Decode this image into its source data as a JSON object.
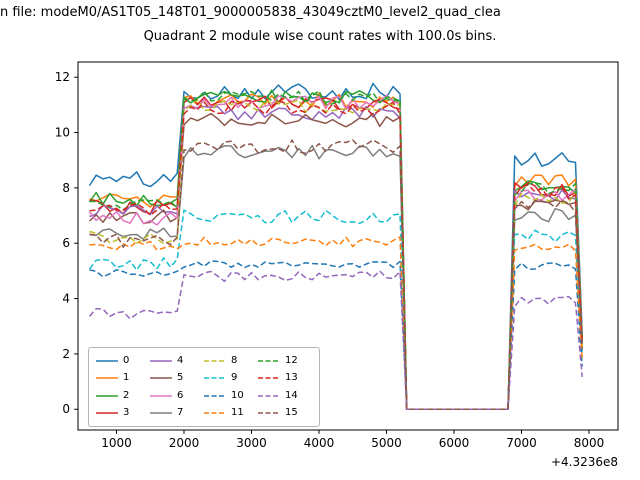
{
  "chart_data": {
    "type": "line",
    "suptitle": "n file: modeM0/AS1T05_148T01_9000005838_43049cztM0_level2_quad_clea",
    "title": "Quadrant 2 module wise count rates with 100.0s bins.",
    "xlabel": "",
    "ylabel": "",
    "x_offset_text": "+4.3236e8",
    "xlim": [
      430,
      8430
    ],
    "ylim": [
      -0.75,
      12.55
    ],
    "x_ticks": [
      1000,
      2000,
      3000,
      4000,
      5000,
      6000,
      7000,
      8000
    ],
    "y_ticks": [
      0,
      2,
      4,
      6,
      8,
      10,
      12
    ],
    "grid": false,
    "legend_position": "lower left",
    "legend_columns": 4,
    "x_start": 600,
    "x_end": 7900,
    "x_step": 100,
    "segments": [
      {
        "from": 600,
        "to": 1900,
        "level_key": "pre"
      },
      {
        "from": 2000,
        "to": 5200,
        "level_key": "high"
      },
      {
        "from": 5300,
        "to": 6800,
        "level_key": "zero"
      },
      {
        "from": 6900,
        "to": 7800,
        "level_key": "post"
      },
      {
        "from": 7900,
        "to": 7900,
        "level_key": "end"
      }
    ],
    "end_factor": 0.3,
    "series": [
      {
        "name": "0",
        "color": "#1f77b4",
        "dashed": false,
        "levels": {
          "pre": 8.3,
          "high": 11.5,
          "post": 9.0
        },
        "noise": 0.3,
        "seed": 101
      },
      {
        "name": "1",
        "color": "#ff7f0e",
        "dashed": false,
        "levels": {
          "pre": 7.5,
          "high": 11.15,
          "post": 8.2
        },
        "noise": 0.28,
        "seed": 102
      },
      {
        "name": "2",
        "color": "#2ca02c",
        "dashed": false,
        "levels": {
          "pre": 7.6,
          "high": 11.3,
          "post": 8.05
        },
        "noise": 0.26,
        "seed": 103
      },
      {
        "name": "3",
        "color": "#d62728",
        "dashed": false,
        "levels": {
          "pre": 7.3,
          "high": 11.05,
          "post": 7.95
        },
        "noise": 0.26,
        "seed": 104
      },
      {
        "name": "4",
        "color": "#9467bd",
        "dashed": false,
        "levels": {
          "pre": 7.15,
          "high": 10.7,
          "post": 7.75
        },
        "noise": 0.25,
        "seed": 105
      },
      {
        "name": "5",
        "color": "#8c564b",
        "dashed": false,
        "levels": {
          "pre": 6.95,
          "high": 10.45,
          "post": 7.45
        },
        "noise": 0.25,
        "seed": 106
      },
      {
        "name": "6",
        "color": "#e377c2",
        "dashed": false,
        "levels": {
          "pre": 6.9,
          "high": 11.1,
          "post": 7.7
        },
        "noise": 0.26,
        "seed": 107
      },
      {
        "name": "7",
        "color": "#7f7f7f",
        "dashed": false,
        "levels": {
          "pre": 6.35,
          "high": 9.3,
          "post": 7.0
        },
        "noise": 0.25,
        "seed": 108
      },
      {
        "name": "8",
        "color": "#bcbd22",
        "dashed": true,
        "levels": {
          "pre": 6.2,
          "high": 10.95,
          "post": 7.6
        },
        "noise": 0.26,
        "seed": 109
      },
      {
        "name": "9",
        "color": "#17becf",
        "dashed": true,
        "levels": {
          "pre": 5.25,
          "high": 6.95,
          "post": 6.3
        },
        "noise": 0.25,
        "seed": 110
      },
      {
        "name": "10",
        "color": "#1f77b4",
        "dashed": true,
        "levels": {
          "pre": 4.9,
          "high": 5.25,
          "post": 5.15
        },
        "noise": 0.14,
        "seed": 111
      },
      {
        "name": "11",
        "color": "#ff7f0e",
        "dashed": true,
        "levels": {
          "pre": 5.9,
          "high": 6.05,
          "post": 5.85
        },
        "noise": 0.18,
        "seed": 112
      },
      {
        "name": "12",
        "color": "#2ca02c",
        "dashed": true,
        "levels": {
          "pre": 7.4,
          "high": 11.25,
          "post": 8.0
        },
        "noise": 0.26,
        "seed": 113
      },
      {
        "name": "13",
        "color": "#d62728",
        "dashed": true,
        "levels": {
          "pre": 7.2,
          "high": 10.9,
          "post": 7.85
        },
        "noise": 0.26,
        "seed": 114
      },
      {
        "name": "14",
        "color": "#9467bd",
        "dashed": true,
        "levels": {
          "pre": 3.45,
          "high": 4.8,
          "post": 3.9
        },
        "noise": 0.2,
        "seed": 115
      },
      {
        "name": "15",
        "color": "#8c564b",
        "dashed": true,
        "levels": {
          "pre": 6.1,
          "high": 9.5,
          "post": 7.3
        },
        "noise": 0.25,
        "seed": 116
      }
    ]
  }
}
